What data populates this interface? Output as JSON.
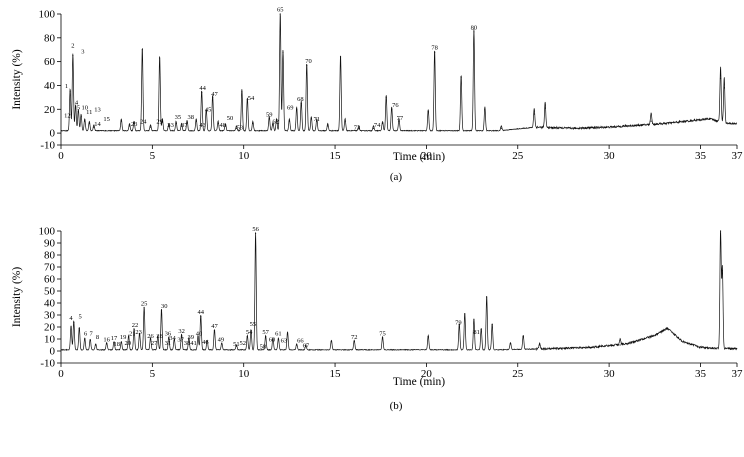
{
  "chart_data": [
    {
      "type": "line",
      "panel_label": "(a)",
      "xlabel": "Time (min)",
      "ylabel": "Intensity (%)",
      "xlim": [
        0,
        37
      ],
      "ylim": [
        -10,
        100
      ],
      "xticks": [
        0,
        5,
        10,
        15,
        20,
        25,
        30,
        35,
        37
      ],
      "yticks": [
        -10,
        0,
        20,
        40,
        60,
        80,
        100
      ],
      "grid": false,
      "peaks": [
        {
          "t": 0.5,
          "h": 35
        },
        {
          "t": 0.65,
          "h": 65
        },
        {
          "t": 0.8,
          "h": 22
        },
        {
          "t": 0.95,
          "h": 18
        },
        {
          "t": 1.1,
          "h": 14
        },
        {
          "t": 1.3,
          "h": 10
        },
        {
          "t": 1.55,
          "h": 8
        },
        {
          "t": 1.8,
          "h": 5
        },
        {
          "t": 3.3,
          "h": 10
        },
        {
          "t": 3.75,
          "h": 6
        },
        {
          "t": 4.0,
          "h": 8
        },
        {
          "t": 4.45,
          "h": 70
        },
        {
          "t": 4.9,
          "h": 5
        },
        {
          "t": 5.4,
          "h": 63
        },
        {
          "t": 5.55,
          "h": 10
        },
        {
          "t": 5.9,
          "h": 6
        },
        {
          "t": 6.3,
          "h": 8
        },
        {
          "t": 6.6,
          "h": 6
        },
        {
          "t": 6.9,
          "h": 9
        },
        {
          "t": 7.4,
          "h": 10
        },
        {
          "t": 7.7,
          "h": 34
        },
        {
          "t": 7.95,
          "h": 18
        },
        {
          "t": 8.3,
          "h": 30
        },
        {
          "t": 8.6,
          "h": 8
        },
        {
          "t": 9.0,
          "h": 6
        },
        {
          "t": 9.6,
          "h": 4
        },
        {
          "t": 9.9,
          "h": 35
        },
        {
          "t": 10.2,
          "h": 28
        },
        {
          "t": 10.5,
          "h": 8
        },
        {
          "t": 11.4,
          "h": 12
        },
        {
          "t": 11.6,
          "h": 7
        },
        {
          "t": 11.8,
          "h": 10
        },
        {
          "t": 12.0,
          "h": 100
        },
        {
          "t": 12.15,
          "h": 68
        },
        {
          "t": 12.5,
          "h": 10
        },
        {
          "t": 12.9,
          "h": 20
        },
        {
          "t": 13.15,
          "h": 25
        },
        {
          "t": 13.45,
          "h": 57
        },
        {
          "t": 13.7,
          "h": 12
        },
        {
          "t": 14.0,
          "h": 10
        },
        {
          "t": 14.6,
          "h": 6
        },
        {
          "t": 15.3,
          "h": 64
        },
        {
          "t": 15.55,
          "h": 10
        },
        {
          "t": 16.3,
          "h": 4
        },
        {
          "t": 17.1,
          "h": 4
        },
        {
          "t": 17.6,
          "h": 8
        },
        {
          "t": 17.8,
          "h": 30
        },
        {
          "t": 18.1,
          "h": 20
        },
        {
          "t": 18.5,
          "h": 10
        },
        {
          "t": 20.1,
          "h": 18
        },
        {
          "t": 20.45,
          "h": 68
        },
        {
          "t": 21.9,
          "h": 47
        },
        {
          "t": 22.6,
          "h": 85
        },
        {
          "t": 23.2,
          "h": 20
        },
        {
          "t": 24.1,
          "h": 4
        },
        {
          "t": 25.9,
          "h": 16
        },
        {
          "t": 26.5,
          "h": 21
        },
        {
          "t": 32.3,
          "h": 10
        },
        {
          "t": 36.1,
          "h": 46
        },
        {
          "t": 36.3,
          "h": 38
        }
      ],
      "baseline": [
        [
          0,
          2
        ],
        [
          20,
          2
        ],
        [
          24,
          2
        ],
        [
          26,
          5
        ],
        [
          28,
          4
        ],
        [
          30,
          5
        ],
        [
          33,
          8
        ],
        [
          35.5,
          12
        ],
        [
          36.5,
          8
        ],
        [
          37,
          8
        ]
      ],
      "peak_labels": [
        {
          "text": "1",
          "t": 0.3,
          "y": 38
        },
        {
          "text": "2",
          "t": 0.65,
          "y": 72
        },
        {
          "text": "3",
          "t": 1.2,
          "y": 67
        },
        {
          "text": "4",
          "t": 0.85,
          "y": 24
        },
        {
          "text": "5",
          "t": 0.95,
          "y": 20
        },
        {
          "text": "10",
          "t": 1.3,
          "y": 20
        },
        {
          "text": "11",
          "t": 1.55,
          "y": 16
        },
        {
          "text": "12",
          "t": 0.35,
          "y": 13
        },
        {
          "text": "13",
          "t": 2.0,
          "y": 18
        },
        {
          "text": "14",
          "t": 2.0,
          "y": 6
        },
        {
          "text": "15",
          "t": 2.5,
          "y": 10
        },
        {
          "text": "23",
          "t": 4.0,
          "y": 6
        },
        {
          "text": "24",
          "t": 4.5,
          "y": 8
        },
        {
          "text": "29",
          "t": 5.4,
          "y": 8
        },
        {
          "text": "33",
          "t": 6.0,
          "y": 5
        },
        {
          "text": "35",
          "t": 6.4,
          "y": 12
        },
        {
          "text": "37",
          "t": 6.75,
          "y": 5
        },
        {
          "text": "38",
          "t": 7.1,
          "y": 12
        },
        {
          "text": "43",
          "t": 7.75,
          "y": 5
        },
        {
          "text": "44",
          "t": 7.75,
          "y": 36
        },
        {
          "text": "45",
          "t": 8.05,
          "y": 18
        },
        {
          "text": "47",
          "t": 8.4,
          "y": 31
        },
        {
          "text": "48",
          "t": 8.85,
          "y": 5
        },
        {
          "text": "50",
          "t": 9.25,
          "y": 11
        },
        {
          "text": "53",
          "t": 9.8,
          "y": 3
        },
        {
          "text": "54",
          "t": 10.4,
          "y": 28
        },
        {
          "text": "59",
          "t": 11.4,
          "y": 14
        },
        {
          "text": "62",
          "t": 11.75,
          "y": 8
        },
        {
          "text": "65",
          "t": 12.0,
          "y": 102
        },
        {
          "text": "68",
          "t": 13.1,
          "y": 27
        },
        {
          "text": "69",
          "t": 12.55,
          "y": 20
        },
        {
          "text": "70",
          "t": 13.55,
          "y": 59
        },
        {
          "text": "71",
          "t": 14.0,
          "y": 10
        },
        {
          "text": "73",
          "t": 16.2,
          "y": 3
        },
        {
          "text": "74",
          "t": 17.3,
          "y": 5
        },
        {
          "text": "76",
          "t": 18.3,
          "y": 22
        },
        {
          "text": "77",
          "t": 18.55,
          "y": 11
        },
        {
          "text": "78",
          "t": 20.45,
          "y": 70
        },
        {
          "text": "80",
          "t": 22.6,
          "y": 87
        }
      ]
    },
    {
      "type": "line",
      "panel_label": "(b)",
      "xlabel": "Time (min)",
      "ylabel": "Intensity (%)",
      "xlim": [
        0,
        37
      ],
      "ylim": [
        -10,
        100
      ],
      "xticks": [
        0,
        5,
        10,
        15,
        20,
        25,
        30,
        35,
        37
      ],
      "yticks": [
        -10,
        0,
        10,
        20,
        30,
        40,
        50,
        60,
        70,
        80,
        90,
        100
      ],
      "grid": false,
      "peaks": [
        {
          "t": 0.55,
          "h": 20
        },
        {
          "t": 0.7,
          "h": 24
        },
        {
          "t": 1.0,
          "h": 19
        },
        {
          "t": 1.3,
          "h": 10
        },
        {
          "t": 1.6,
          "h": 9
        },
        {
          "t": 1.9,
          "h": 5
        },
        {
          "t": 2.5,
          "h": 6
        },
        {
          "t": 2.9,
          "h": 7
        },
        {
          "t": 3.3,
          "h": 7
        },
        {
          "t": 3.7,
          "h": 12
        },
        {
          "t": 4.0,
          "h": 18
        },
        {
          "t": 4.3,
          "h": 14
        },
        {
          "t": 4.55,
          "h": 36
        },
        {
          "t": 4.9,
          "h": 10
        },
        {
          "t": 5.3,
          "h": 12
        },
        {
          "t": 5.5,
          "h": 34
        },
        {
          "t": 5.9,
          "h": 11
        },
        {
          "t": 6.2,
          "h": 9
        },
        {
          "t": 6.6,
          "h": 13
        },
        {
          "t": 7.0,
          "h": 10
        },
        {
          "t": 7.5,
          "h": 12
        },
        {
          "t": 7.65,
          "h": 29
        },
        {
          "t": 8.0,
          "h": 8
        },
        {
          "t": 8.4,
          "h": 17
        },
        {
          "t": 8.8,
          "h": 6
        },
        {
          "t": 9.6,
          "h": 4
        },
        {
          "t": 10.2,
          "h": 12
        },
        {
          "t": 10.4,
          "h": 17
        },
        {
          "t": 10.65,
          "h": 98
        },
        {
          "t": 11.2,
          "h": 12
        },
        {
          "t": 11.6,
          "h": 10
        },
        {
          "t": 11.9,
          "h": 10
        },
        {
          "t": 12.4,
          "h": 15
        },
        {
          "t": 12.9,
          "h": 5
        },
        {
          "t": 13.4,
          "h": 4
        },
        {
          "t": 14.8,
          "h": 8
        },
        {
          "t": 16.05,
          "h": 8
        },
        {
          "t": 17.6,
          "h": 11
        },
        {
          "t": 20.1,
          "h": 12
        },
        {
          "t": 21.8,
          "h": 22
        },
        {
          "t": 22.1,
          "h": 31
        },
        {
          "t": 22.6,
          "h": 26
        },
        {
          "t": 23.0,
          "h": 18
        },
        {
          "t": 23.3,
          "h": 45
        },
        {
          "t": 23.6,
          "h": 22
        },
        {
          "t": 24.6,
          "h": 6
        },
        {
          "t": 25.3,
          "h": 12
        },
        {
          "t": 26.2,
          "h": 5
        },
        {
          "t": 30.6,
          "h": 5
        },
        {
          "t": 36.1,
          "h": 100
        },
        {
          "t": 36.2,
          "h": 67
        }
      ],
      "baseline": [
        [
          0,
          1
        ],
        [
          24,
          1
        ],
        [
          27,
          2
        ],
        [
          29,
          3
        ],
        [
          31,
          6
        ],
        [
          32.5,
          13
        ],
        [
          33.2,
          19
        ],
        [
          34,
          8
        ],
        [
          35,
          3
        ],
        [
          36,
          2
        ],
        [
          37,
          2
        ]
      ],
      "peak_labels": [
        {
          "text": "4",
          "t": 0.55,
          "y": 26
        },
        {
          "text": "5",
          "t": 1.05,
          "y": 27
        },
        {
          "text": "6",
          "t": 1.35,
          "y": 13
        },
        {
          "text": "7",
          "t": 1.65,
          "y": 13
        },
        {
          "text": "8",
          "t": 2.0,
          "y": 10
        },
        {
          "text": "16",
          "t": 2.5,
          "y": 8
        },
        {
          "text": "17",
          "t": 2.9,
          "y": 9
        },
        {
          "text": "18",
          "t": 3.05,
          "y": 4
        },
        {
          "text": "19",
          "t": 3.4,
          "y": 10
        },
        {
          "text": "20",
          "t": 3.65,
          "y": 5
        },
        {
          "text": "21",
          "t": 3.9,
          "y": 13
        },
        {
          "text": "22",
          "t": 4.05,
          "y": 20
        },
        {
          "text": "23",
          "t": 4.25,
          "y": 14
        },
        {
          "text": "25",
          "t": 4.55,
          "y": 38
        },
        {
          "text": "26",
          "t": 4.9,
          "y": 11
        },
        {
          "text": "27",
          "t": 5.1,
          "y": 5
        },
        {
          "text": "28",
          "t": 5.4,
          "y": 11
        },
        {
          "text": "30",
          "t": 5.65,
          "y": 36
        },
        {
          "text": "31",
          "t": 5.85,
          "y": 5
        },
        {
          "text": "34",
          "t": 6.1,
          "y": 9
        },
        {
          "text": "36",
          "t": 5.85,
          "y": 13
        },
        {
          "text": "32",
          "t": 6.6,
          "y": 15
        },
        {
          "text": "37",
          "t": 6.55,
          "y": 8
        },
        {
          "text": "38",
          "t": 6.9,
          "y": 5
        },
        {
          "text": "39",
          "t": 7.1,
          "y": 10
        },
        {
          "text": "41",
          "t": 7.25,
          "y": 5
        },
        {
          "text": "40",
          "t": 7.55,
          "y": 13
        },
        {
          "text": "44",
          "t": 7.65,
          "y": 31
        },
        {
          "text": "46",
          "t": 7.9,
          "y": 6
        },
        {
          "text": "47",
          "t": 8.4,
          "y": 19
        },
        {
          "text": "49",
          "t": 8.75,
          "y": 8
        },
        {
          "text": "51",
          "t": 9.6,
          "y": 4
        },
        {
          "text": "52",
          "t": 9.95,
          "y": 5
        },
        {
          "text": "54",
          "t": 10.3,
          "y": 14
        },
        {
          "text": "55",
          "t": 10.5,
          "y": 21
        },
        {
          "text": "56",
          "t": 10.65,
          "y": 100
        },
        {
          "text": "57",
          "t": 11.2,
          "y": 14
        },
        {
          "text": "58",
          "t": 11.05,
          "y": 2
        },
        {
          "text": "60",
          "t": 11.55,
          "y": 8
        },
        {
          "text": "61",
          "t": 11.9,
          "y": 13
        },
        {
          "text": "63",
          "t": 12.2,
          "y": 7
        },
        {
          "text": "66",
          "t": 13.1,
          "y": 7
        },
        {
          "text": "67",
          "t": 13.4,
          "y": 3
        },
        {
          "text": "72",
          "t": 16.05,
          "y": 10
        },
        {
          "text": "75",
          "t": 17.6,
          "y": 13
        },
        {
          "text": "79",
          "t": 21.75,
          "y": 22
        },
        {
          "text": "81",
          "t": 22.75,
          "y": 14
        }
      ]
    }
  ]
}
